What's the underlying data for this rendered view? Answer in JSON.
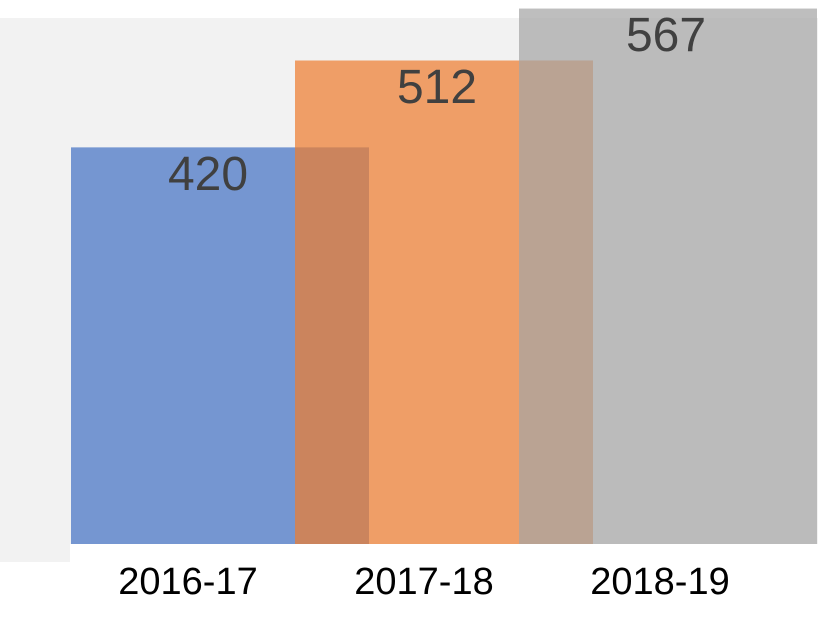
{
  "chart_data": {
    "type": "bar",
    "categories": [
      "2016-17",
      "2017-18",
      "2018-19"
    ],
    "values": [
      420,
      512,
      567
    ],
    "colors": [
      "#4472c4",
      "#ed7d31",
      "#a5a5a5"
    ],
    "ylim": [
      0,
      575
    ]
  }
}
